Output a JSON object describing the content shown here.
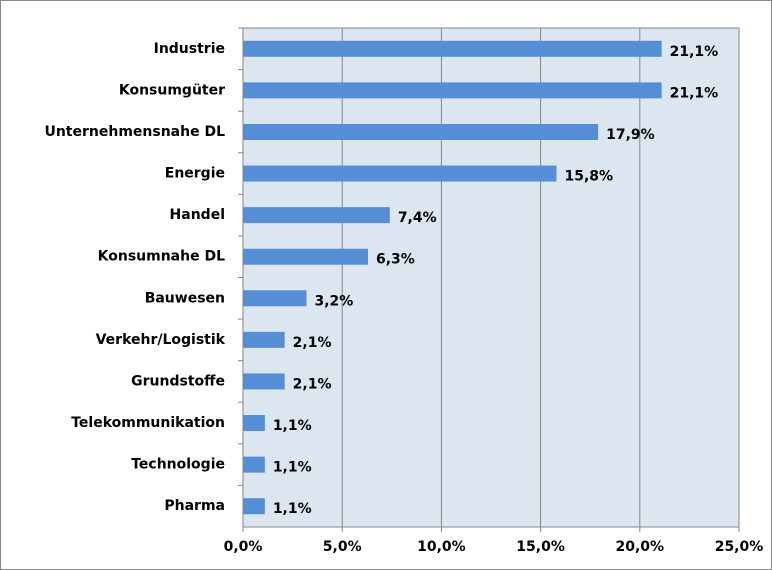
{
  "chart_data": {
    "type": "bar",
    "orientation": "horizontal",
    "categories": [
      "Industrie",
      "Konsumgüter",
      "Unternehmensnahe DL",
      "Energie",
      "Handel",
      "Konsumnahe DL",
      "Bauwesen",
      "Verkehr/Logistik",
      "Grundstoffe",
      "Telekommunikation",
      "Technologie",
      "Pharma"
    ],
    "values": [
      21.1,
      21.1,
      17.9,
      15.8,
      7.4,
      6.3,
      3.2,
      2.1,
      2.1,
      1.1,
      1.1,
      1.1
    ],
    "value_labels": [
      "21,1%",
      "21,1%",
      "17,9%",
      "15,8%",
      "7,4%",
      "6,3%",
      "3,2%",
      "2,1%",
      "2,1%",
      "1,1%",
      "1,1%",
      "1,1%"
    ],
    "color": "#558ed5",
    "xlim": [
      0,
      25
    ],
    "xticks": [
      {
        "value": 0,
        "label": "0,0%"
      },
      {
        "value": 5,
        "label": "5,0%"
      },
      {
        "value": 10,
        "label": "10,0%"
      },
      {
        "value": 15,
        "label": "15,0%"
      },
      {
        "value": 20,
        "label": "20,0%"
      },
      {
        "value": 25,
        "label": "25,0%"
      }
    ],
    "grid": true
  }
}
